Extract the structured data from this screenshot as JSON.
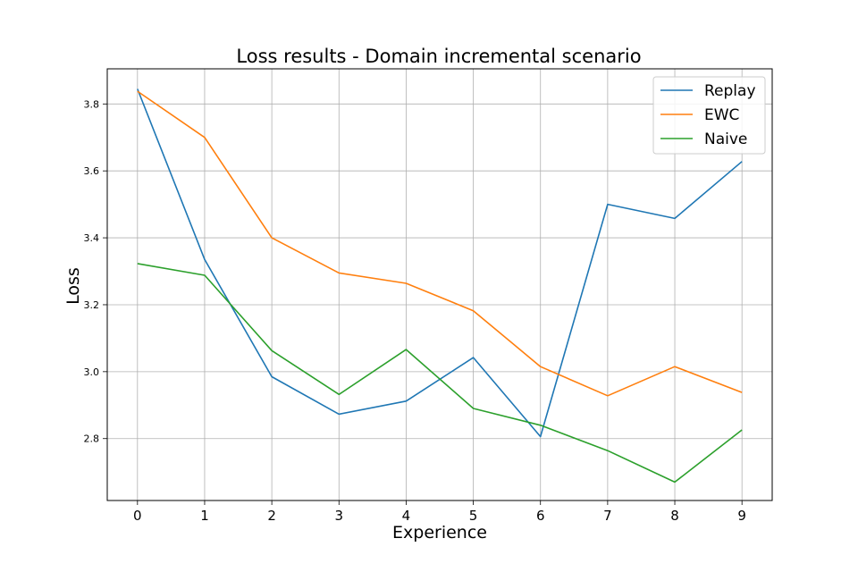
{
  "chart_data": {
    "type": "line",
    "title": "Loss results - Domain incremental scenario",
    "xlabel": "Experience",
    "ylabel": "Loss",
    "x": [
      0,
      1,
      2,
      3,
      4,
      5,
      6,
      7,
      8,
      9
    ],
    "xticks": [
      "0",
      "1",
      "2",
      "3",
      "4",
      "5",
      "6",
      "7",
      "8",
      "9"
    ],
    "yticks": [
      "2.8",
      "3.0",
      "3.2",
      "3.4",
      "3.6",
      "3.8"
    ],
    "xlim": [
      -0.45,
      9.45
    ],
    "ylim": [
      2.615,
      3.905
    ],
    "grid": true,
    "legend_position": "top-right",
    "series": [
      {
        "name": "Replay",
        "color": "#1f77b4",
        "values": [
          3.845,
          3.335,
          2.985,
          2.873,
          2.912,
          3.042,
          2.806,
          3.5,
          3.458,
          3.628
        ]
      },
      {
        "name": "EWC",
        "color": "#ff7f0e",
        "values": [
          3.838,
          3.7,
          3.4,
          3.295,
          3.264,
          3.182,
          3.015,
          2.928,
          3.015,
          2.938
        ]
      },
      {
        "name": "Naive",
        "color": "#2ca02c",
        "values": [
          3.323,
          3.288,
          3.063,
          2.932,
          3.066,
          2.89,
          2.84,
          2.764,
          2.67,
          2.826
        ]
      }
    ]
  }
}
